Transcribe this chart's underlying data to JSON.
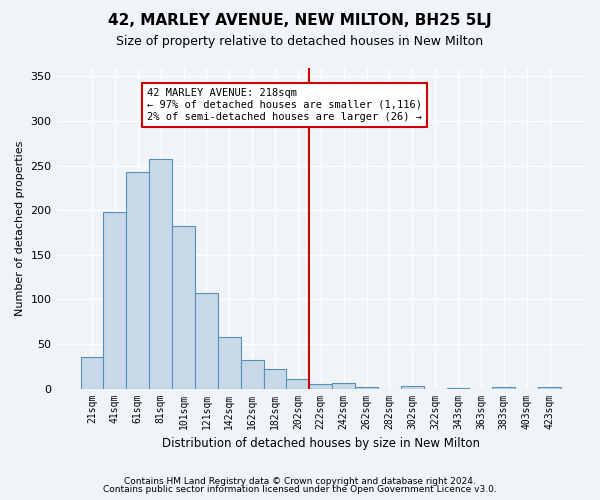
{
  "title": "42, MARLEY AVENUE, NEW MILTON, BH25 5LJ",
  "subtitle": "Size of property relative to detached houses in New Milton",
  "xlabel": "Distribution of detached houses by size in New Milton",
  "ylabel": "Number of detached properties",
  "bar_values": [
    35,
    198,
    243,
    257,
    182,
    107,
    58,
    32,
    22,
    11,
    5,
    6,
    2,
    0,
    3,
    0,
    1,
    0,
    2,
    0,
    2
  ],
  "all_labels": [
    "21sqm",
    "41sqm",
    "61sqm",
    "81sqm",
    "101sqm",
    "121sqm",
    "142sqm",
    "162sqm",
    "182sqm",
    "202sqm",
    "222sqm",
    "242sqm",
    "262sqm",
    "282sqm",
    "302sqm",
    "322sqm",
    "343sqm",
    "363sqm",
    "383sqm",
    "403sqm",
    "423sqm"
  ],
  "bar_color": "#c8d8e8",
  "bar_edge_color": "#5590bb",
  "bg_color": "#f0f4f8",
  "grid_color": "#ffffff",
  "vline_x": 9.5,
  "annotation_text": "42 MARLEY AVENUE: 218sqm\n← 97% of detached houses are smaller (1,116)\n2% of semi-detached houses are larger (26) →",
  "annotation_box_color": "#ffffff",
  "annotation_box_edge": "#cc0000",
  "vline_color": "#cc0000",
  "footer1": "Contains HM Land Registry data © Crown copyright and database right 2024.",
  "footer2": "Contains public sector information licensed under the Open Government Licence v3.0.",
  "ylim": [
    0,
    360
  ],
  "yticks": [
    0,
    50,
    100,
    150,
    200,
    250,
    300,
    350
  ]
}
